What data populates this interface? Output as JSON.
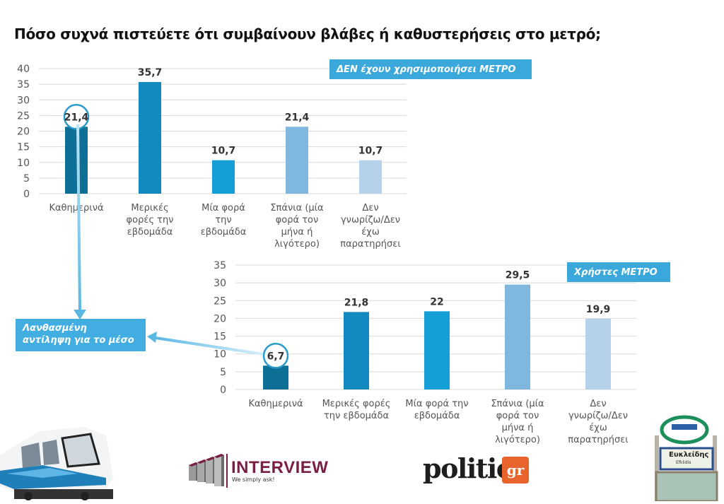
{
  "title": "Πόσο συχνά πιστεύετε ότι συμβαίνουν βλάβες ή καθυστερήσεις στο μετρό;",
  "callout": {
    "line1": "Λανθασμένη",
    "line2": "αντίληψη για το μέσο"
  },
  "logos": {
    "interview_name": "INTERVIEW",
    "interview_tagline": "We simply ask!",
    "politic_name": "politic",
    "politic_suffix": "gr"
  },
  "photos": {
    "sign_station": "Ευκλείδης",
    "sign_station_latin": "Efklidis"
  },
  "chart_data": [
    {
      "type": "bar",
      "title": "ΔΕΝ έχουν χρησιμοποιήσει ΜΕΤΡΟ",
      "categories": [
        [
          "Καθημερινά"
        ],
        [
          "Μερικές",
          "φορές την",
          "εβδομάδα"
        ],
        [
          "Μία φορά",
          "την",
          "εβδομάδα"
        ],
        [
          "Σπάνια (μία",
          "φορά τον",
          "μήνα ή",
          "λιγότερο)"
        ],
        [
          "Δεν",
          "γνωρίζω/Δεν",
          "έχω",
          "παρατηρήσει"
        ]
      ],
      "values": [
        21.4,
        35.7,
        10.7,
        21.4,
        10.7
      ],
      "value_labels": [
        "21,4",
        "35,7",
        "10,7",
        "21,4",
        "10,7"
      ],
      "highlighted_index": 0,
      "colors": [
        "#0e6f96",
        "#1289bf",
        "#14a0d6",
        "#7fb7df",
        "#b5d2ea"
      ],
      "yticks": [
        "0",
        "5",
        "10",
        "15",
        "20",
        "25",
        "30",
        "35",
        "40"
      ],
      "ylim": [
        0,
        40
      ],
      "xlabel": "",
      "ylabel": "",
      "grid": true
    },
    {
      "type": "bar",
      "title": "Χρήστες ΜΕΤΡΟ",
      "categories": [
        [
          "Καθημερινά"
        ],
        [
          "Μερικές φορές",
          "την εβδομάδα"
        ],
        [
          "Μία φορά την",
          "εβδομάδα"
        ],
        [
          "Σπάνια (μία",
          "φορά τον",
          "μήνα ή",
          "λιγότερο)"
        ],
        [
          "Δεν",
          "γνωρίζω/Δεν",
          "έχω",
          "παρατηρήσει"
        ]
      ],
      "values": [
        6.7,
        21.8,
        22,
        29.5,
        19.9
      ],
      "value_labels": [
        "6,7",
        "21,8",
        "22",
        "29,5",
        "19,9"
      ],
      "highlighted_index": 0,
      "colors": [
        "#0e6f96",
        "#1289bf",
        "#14a0d6",
        "#7fb7df",
        "#b5d2ea"
      ],
      "yticks": [
        "0",
        "5",
        "10",
        "15",
        "20",
        "25",
        "30",
        "35"
      ],
      "ylim": [
        0,
        35
      ],
      "xlabel": "",
      "ylabel": "",
      "grid": true
    }
  ]
}
